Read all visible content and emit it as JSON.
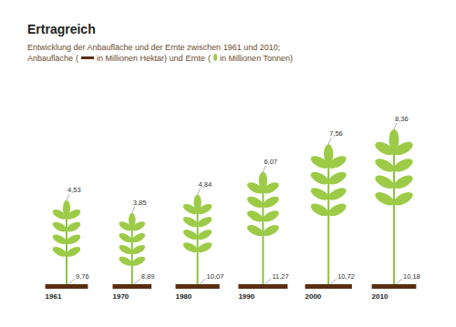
{
  "chart_data": {
    "type": "pictogram",
    "title": "Ertragreich",
    "subtitle": "Entwicklung der Anbaufläche und der Ernte zwischen 1961 und 2010;",
    "legend_text": [
      "(",
      "in Millionen Hektar) und",
      "(",
      "in Millionen Tonnen)"
    ],
    "categories": [
      "1961",
      "1970",
      "1980",
      "1990",
      "2000",
      "2010"
    ],
    "series": [
      {
        "name": "Anbaufläche",
        "color": "#5a2e12",
        "values": [
          9.76,
          8.89,
          10.07,
          11.27,
          10.72,
          10.18
        ],
        "value_labels": [
          "9,76",
          "8,89",
          "10,07",
          "11,27",
          "10,72",
          "10,18"
        ]
      },
      {
        "name": "Ernte",
        "color": "#9dcb48",
        "values": [
          4.53,
          3.85,
          4.84,
          6.07,
          7.56,
          8.36
        ],
        "value_labels": [
          "4,53",
          "3,85",
          "4,84",
          "6,07",
          "7,56",
          "8,36"
        ]
      }
    ],
    "data_labels": true,
    "tick_labels": "x"
  }
}
